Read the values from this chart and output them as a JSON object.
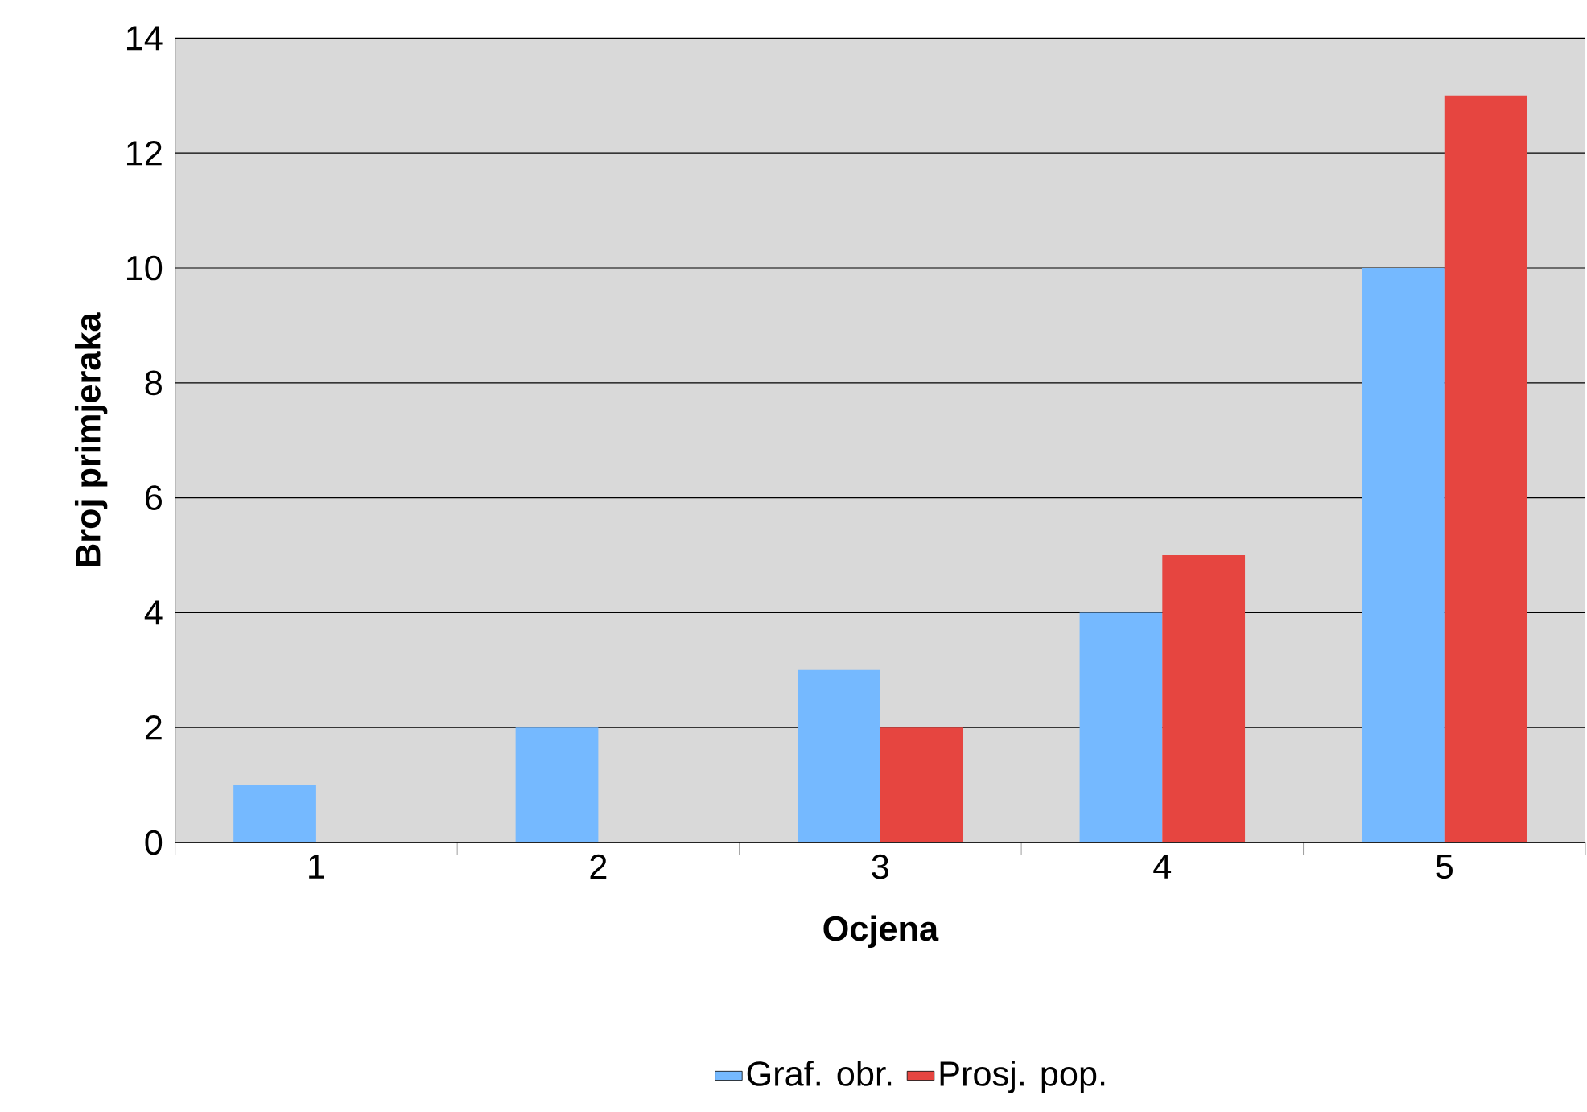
{
  "chart_data": {
    "type": "bar",
    "xlabel": "Ocjena",
    "ylabel": "Broj primjeraka",
    "categories": [
      "1",
      "2",
      "3",
      "4",
      "5"
    ],
    "series": [
      {
        "name": "Graf. obr.",
        "color": "#75b9ff",
        "values": [
          1,
          2,
          3,
          4,
          10
        ]
      },
      {
        "name": "Prosj. pop.",
        "color": "#e64540",
        "values": [
          0,
          0,
          2,
          5,
          13
        ]
      }
    ],
    "ylim": [
      0,
      14
    ],
    "yticks": [
      0,
      2,
      4,
      6,
      8,
      10,
      12,
      14
    ],
    "grid": "y",
    "legend": "bottom"
  }
}
